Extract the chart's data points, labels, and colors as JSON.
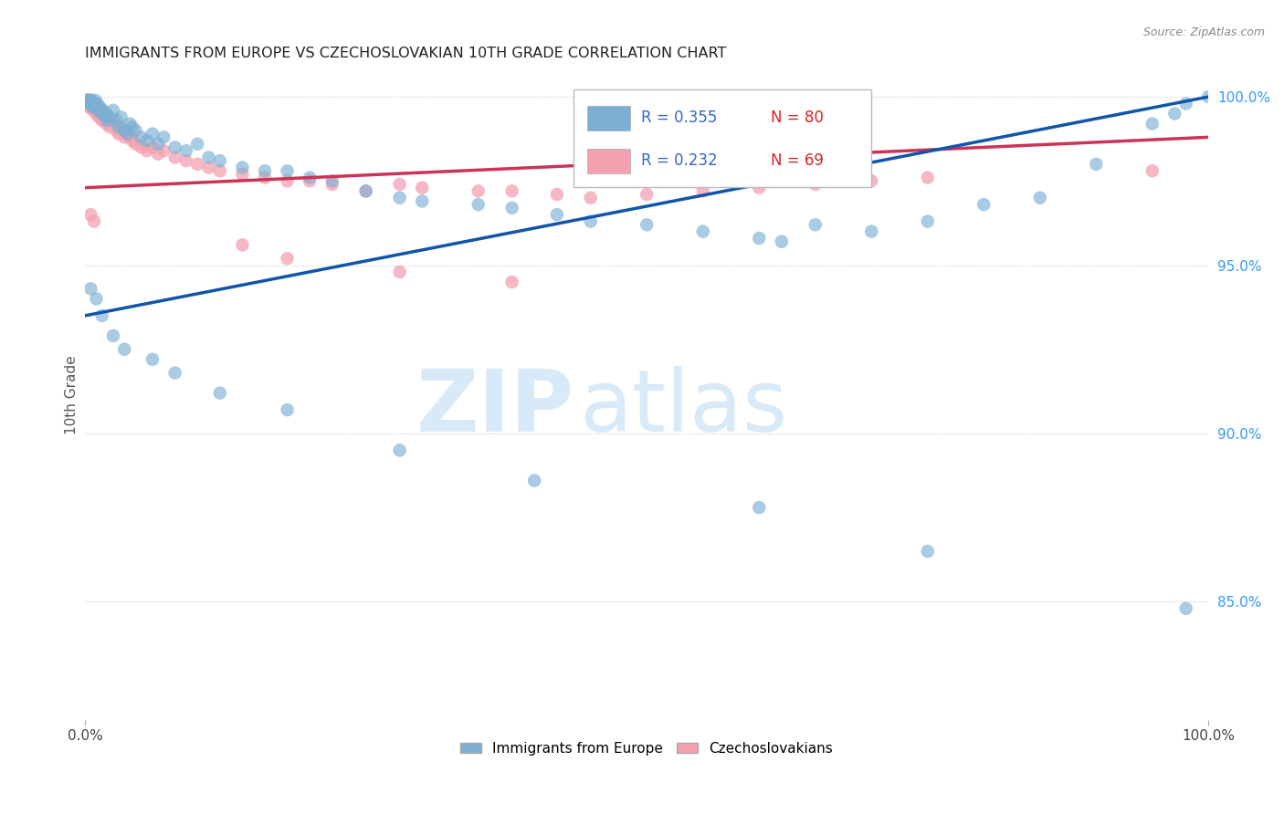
{
  "title": "IMMIGRANTS FROM EUROPE VS CZECHOSLOVAKIAN 10TH GRADE CORRELATION CHART",
  "source": "Source: ZipAtlas.com",
  "ylabel": "10th Grade",
  "legend_label_blue": "Immigrants from Europe",
  "legend_label_pink": "Czechoslovakians",
  "watermark_zip": "ZIP",
  "watermark_atlas": "atlas",
  "blue_color": "#7BAFD4",
  "pink_color": "#F4A0B0",
  "line_blue": "#1155AA",
  "line_pink": "#CC3355",
  "blue_R": 0.355,
  "pink_R": 0.232,
  "blue_N": 80,
  "pink_N": 69,
  "xlim": [
    0.0,
    1.0
  ],
  "ylim": [
    0.815,
    1.008
  ],
  "yticks_right": [
    0.85,
    0.9,
    0.95,
    1.0
  ],
  "ytick_labels_right": [
    "85.0%",
    "90.0%",
    "95.0%",
    "100.0%"
  ],
  "xticks": [
    0.0,
    1.0
  ],
  "xtick_labels": [
    "0.0%",
    "100.0%"
  ],
  "marker_size": 110,
  "blue_line_x0": 0.0,
  "blue_line_y0": 0.935,
  "blue_line_x1": 1.0,
  "blue_line_y1": 1.0,
  "pink_line_x0": 0.0,
  "pink_line_y0": 0.973,
  "pink_line_x1": 1.0,
  "pink_line_y1": 0.988,
  "blue_scatter_x": [
    0.002,
    0.003,
    0.004,
    0.005,
    0.006,
    0.007,
    0.008,
    0.008,
    0.009,
    0.01,
    0.011,
    0.012,
    0.013,
    0.014,
    0.015,
    0.016,
    0.017,
    0.018,
    0.019,
    0.02,
    0.022,
    0.025,
    0.028,
    0.03,
    0.032,
    0.035,
    0.038,
    0.04,
    0.042,
    0.045,
    0.05,
    0.055,
    0.06,
    0.065,
    0.07,
    0.08,
    0.09,
    0.1,
    0.11,
    0.12,
    0.14,
    0.16,
    0.18,
    0.2,
    0.22,
    0.25,
    0.28,
    0.3,
    0.35,
    0.38,
    0.42,
    0.45,
    0.5,
    0.55,
    0.6,
    0.62,
    0.65,
    0.7,
    0.75,
    0.8,
    0.85,
    0.9,
    0.95,
    0.97,
    0.98,
    1.0,
    0.005,
    0.01,
    0.015,
    0.025,
    0.035,
    0.06,
    0.08,
    0.12,
    0.18,
    0.28,
    0.4,
    0.6,
    0.75,
    0.98
  ],
  "blue_scatter_y": [
    0.999,
    0.999,
    0.998,
    0.999,
    0.998,
    0.997,
    0.998,
    0.997,
    0.999,
    0.997,
    0.998,
    0.996,
    0.997,
    0.996,
    0.995,
    0.996,
    0.995,
    0.994,
    0.995,
    0.993,
    0.994,
    0.996,
    0.993,
    0.991,
    0.994,
    0.99,
    0.989,
    0.992,
    0.991,
    0.99,
    0.988,
    0.987,
    0.989,
    0.986,
    0.988,
    0.985,
    0.984,
    0.986,
    0.982,
    0.981,
    0.979,
    0.978,
    0.978,
    0.976,
    0.975,
    0.972,
    0.97,
    0.969,
    0.968,
    0.967,
    0.965,
    0.963,
    0.962,
    0.96,
    0.958,
    0.957,
    0.962,
    0.96,
    0.963,
    0.968,
    0.97,
    0.98,
    0.992,
    0.995,
    0.998,
    1.0,
    0.943,
    0.94,
    0.935,
    0.929,
    0.925,
    0.922,
    0.918,
    0.912,
    0.907,
    0.895,
    0.886,
    0.878,
    0.865,
    0.848
  ],
  "pink_scatter_x": [
    0.002,
    0.002,
    0.003,
    0.003,
    0.004,
    0.005,
    0.005,
    0.006,
    0.007,
    0.007,
    0.008,
    0.009,
    0.01,
    0.01,
    0.011,
    0.012,
    0.013,
    0.014,
    0.015,
    0.016,
    0.017,
    0.018,
    0.019,
    0.02,
    0.022,
    0.025,
    0.028,
    0.03,
    0.032,
    0.035,
    0.038,
    0.04,
    0.042,
    0.045,
    0.05,
    0.055,
    0.06,
    0.065,
    0.07,
    0.08,
    0.09,
    0.1,
    0.11,
    0.12,
    0.14,
    0.16,
    0.18,
    0.2,
    0.22,
    0.25,
    0.28,
    0.3,
    0.35,
    0.38,
    0.42,
    0.45,
    0.5,
    0.55,
    0.6,
    0.65,
    0.7,
    0.75,
    0.95,
    0.14,
    0.18,
    0.28,
    0.38,
    0.005,
    0.008
  ],
  "pink_scatter_y": [
    0.999,
    0.998,
    0.999,
    0.997,
    0.998,
    0.999,
    0.997,
    0.998,
    0.998,
    0.996,
    0.997,
    0.998,
    0.997,
    0.995,
    0.996,
    0.994,
    0.995,
    0.996,
    0.993,
    0.995,
    0.993,
    0.994,
    0.992,
    0.993,
    0.991,
    0.993,
    0.99,
    0.989,
    0.991,
    0.988,
    0.989,
    0.988,
    0.987,
    0.986,
    0.985,
    0.984,
    0.985,
    0.983,
    0.984,
    0.982,
    0.981,
    0.98,
    0.979,
    0.978,
    0.977,
    0.976,
    0.975,
    0.975,
    0.974,
    0.972,
    0.974,
    0.973,
    0.972,
    0.972,
    0.971,
    0.97,
    0.971,
    0.972,
    0.973,
    0.974,
    0.975,
    0.976,
    0.978,
    0.956,
    0.952,
    0.948,
    0.945,
    0.965,
    0.963
  ]
}
